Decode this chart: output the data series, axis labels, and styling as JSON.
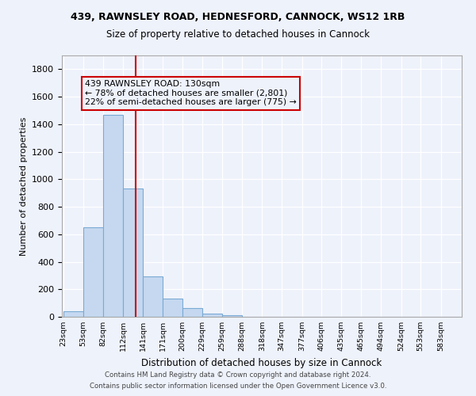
{
  "title1": "439, RAWNSLEY ROAD, HEDNESFORD, CANNOCK, WS12 1RB",
  "title2": "Size of property relative to detached houses in Cannock",
  "xlabel": "Distribution of detached houses by size in Cannock",
  "ylabel": "Number of detached properties",
  "annotation_line1": "439 RAWNSLEY ROAD: 130sqm",
  "annotation_line2": "← 78% of detached houses are smaller (2,801)",
  "annotation_line3": "22% of semi-detached houses are larger (775) →",
  "footnote1": "Contains HM Land Registry data © Crown copyright and database right 2024.",
  "footnote2": "Contains public sector information licensed under the Open Government Licence v3.0.",
  "property_size": 130,
  "bar_edges": [
    23,
    53,
    82,
    112,
    141,
    171,
    200,
    229,
    259,
    288,
    318,
    347,
    377,
    406,
    435,
    465,
    494,
    524,
    553,
    583,
    612
  ],
  "bar_heights": [
    40,
    650,
    1470,
    935,
    295,
    130,
    65,
    25,
    10,
    0,
    0,
    0,
    0,
    0,
    0,
    0,
    0,
    0,
    0,
    0
  ],
  "bar_color": "#c5d8f0",
  "bar_edge_color": "#7baad4",
  "vline_color": "#cc0000",
  "vline_x": 130,
  "ylim": [
    0,
    1900
  ],
  "yticks": [
    0,
    200,
    400,
    600,
    800,
    1000,
    1200,
    1400,
    1600,
    1800
  ],
  "bg_color": "#eef2fb",
  "grid_color": "#ffffff",
  "annotation_box_color": "#cc0000"
}
